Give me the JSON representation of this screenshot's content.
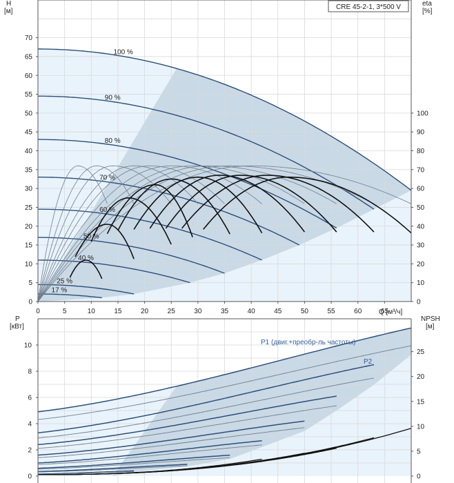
{
  "title_box": "CRE 45-2-1, 3*500 V",
  "colors": {
    "grid": "#d9d9d9",
    "frame": "#555555",
    "fill_light": "#e9f3fb",
    "fill_dark": "#c9d9e6",
    "curve_blue": "#2c4f7a",
    "curve_thin": "#6f7f8f",
    "eta_curve": "#111111"
  },
  "chart_data": [
    {
      "type": "line",
      "name": "head-efficiency",
      "title": "CRE 45-2-1, 3*500 V",
      "xlabel": "Q [м³/ч]",
      "ylabel_left": "H [м]",
      "ylabel_right": "eta [%]",
      "y_label_left_lines": [
        "H",
        "[м]"
      ],
      "y_label_right_lines": [
        "eta",
        "[%]"
      ],
      "xlim": [
        0,
        70
      ],
      "ylim_left": [
        0,
        80
      ],
      "ylim_right": [
        0,
        160
      ],
      "x_ticks": [
        0,
        5,
        10,
        15,
        20,
        25,
        30,
        35,
        40,
        45,
        50,
        55,
        60,
        65
      ],
      "x_tick_labels": [
        "0",
        "5",
        "10",
        "15",
        "20",
        "25",
        "30",
        "35",
        "40",
        "45",
        "50",
        "55",
        "60",
        "65"
      ],
      "y_ticks_left": [
        0,
        5,
        10,
        15,
        20,
        25,
        30,
        35,
        40,
        45,
        50,
        55,
        60,
        65,
        70
      ],
      "y_ticks_right": [
        0,
        10,
        20,
        30,
        40,
        50,
        60,
        70,
        80,
        90,
        100
      ],
      "grid": true,
      "head_curves": [
        {
          "label": "100 %",
          "H0": 67.0,
          "Qmax": 70.0,
          "Hend": 29.5
        },
        {
          "label": "90 %",
          "H0": 54.5,
          "Qmax": 63.0,
          "Hend": 24.5
        },
        {
          "label": "80 %",
          "H0": 43.0,
          "Qmax": 56.0,
          "Hend": 19.5
        },
        {
          "label": "70 %",
          "H0": 33.0,
          "Qmax": 49.0,
          "Hend": 15.0
        },
        {
          "label": "60 %",
          "H0": 24.5,
          "Qmax": 42.0,
          "Hend": 11.0
        },
        {
          "label": "50 %",
          "H0": 17.0,
          "Qmax": 35.0,
          "Hend": 7.5
        },
        {
          "label": "40 %",
          "H0": 11.0,
          "Qmax": 28.5,
          "Hend": 5.0
        },
        {
          "label": "25 %",
          "H0": 4.5,
          "Qmax": 18.0,
          "Hend": 2.0
        },
        {
          "label": "17 %",
          "H0": 2.0,
          "Qmax": 12.0,
          "Hend": 1.0
        }
      ],
      "label_positions_q": [
        16,
        14,
        14,
        13,
        13,
        10,
        9,
        5,
        4
      ],
      "eta_curves_thin": [
        {
          "Qpk": 7.5,
          "Qend": 13,
          "pk": 72
        },
        {
          "Qpk": 11,
          "Qend": 18,
          "pk": 72
        },
        {
          "Qpk": 14,
          "Qend": 25,
          "pk": 72
        },
        {
          "Qpk": 18,
          "Qend": 30,
          "pk": 72
        },
        {
          "Qpk": 21,
          "Qend": 35,
          "pk": 72
        },
        {
          "Qpk": 25,
          "Qend": 42,
          "pk": 72
        },
        {
          "Qpk": 29,
          "Qend": 50,
          "pk": 72
        },
        {
          "Qpk": 32,
          "Qend": 56,
          "pk": 72
        },
        {
          "Qpk": 36,
          "Qend": 63,
          "pk": 72
        },
        {
          "Qpk": 40,
          "Qend": 70,
          "pk": 72
        }
      ],
      "eta_curves_thick": [
        {
          "Qstart": 6,
          "Qpk": 9,
          "Qend": 12,
          "pk": 22
        },
        {
          "Qstart": 7,
          "Qpk": 13,
          "Qend": 18,
          "pk": 41
        },
        {
          "Qstart": 10,
          "Qpk": 17,
          "Qend": 25,
          "pk": 55
        },
        {
          "Qstart": 13,
          "Qpk": 22,
          "Qend": 29,
          "pk": 62
        },
        {
          "Qstart": 15,
          "Qpk": 25,
          "Qend": 36,
          "pk": 65
        },
        {
          "Qstart": 18,
          "Qpk": 30,
          "Qend": 42,
          "pk": 66
        },
        {
          "Qstart": 21,
          "Qpk": 34,
          "Qend": 50,
          "pk": 67
        },
        {
          "Qstart": 24,
          "Qpk": 38,
          "Qend": 56,
          "pk": 67
        },
        {
          "Qstart": 27,
          "Qpk": 43,
          "Qend": 63,
          "pk": 67
        },
        {
          "Qstart": 31,
          "Qpk": 47,
          "Qend": 70,
          "pk": 66
        }
      ]
    },
    {
      "type": "line",
      "name": "power-npsh",
      "xlabel": "",
      "ylabel_left": "P [кВт]",
      "ylabel_right": "NPSH [м]",
      "y_label_left_lines": [
        "P",
        "[кВт]"
      ],
      "y_label_right_lines": [
        "NPSH",
        "[м]"
      ],
      "xlim": [
        0,
        70
      ],
      "ylim_left": [
        0,
        12
      ],
      "ylim_right": [
        0,
        31.6
      ],
      "y_ticks_left": [
        0,
        2,
        4,
        6,
        8,
        10
      ],
      "y_ticks_right": [
        0,
        5,
        10,
        15,
        20,
        25
      ],
      "grid": true,
      "series_labels": [
        "P1 (двиг.+преобр-ль частоты)",
        "P2"
      ],
      "power_curves": [
        {
          "start": 4.9,
          "end": 11.3,
          "Qend": 70
        },
        {
          "start": 3.3,
          "end": 8.5,
          "Qend": 63
        },
        {
          "start": 2.4,
          "end": 6.1,
          "Qend": 56
        },
        {
          "start": 1.6,
          "end": 4.2,
          "Qend": 50
        },
        {
          "start": 1.0,
          "end": 2.7,
          "Qend": 42
        },
        {
          "start": 0.6,
          "end": 1.6,
          "Qend": 36
        },
        {
          "start": 0.35,
          "end": 0.9,
          "Qend": 28
        },
        {
          "start": 0.15,
          "end": 0.4,
          "Qend": 18
        }
      ],
      "npsh_curves": [
        {
          "Qend": 70,
          "end": 9.6
        },
        {
          "Qend": 63,
          "end": 7.7
        },
        {
          "Qend": 56,
          "end": 5.6
        },
        {
          "Qend": 50,
          "end": 4.6
        },
        {
          "Qend": 42,
          "end": 3.4
        }
      ]
    }
  ]
}
